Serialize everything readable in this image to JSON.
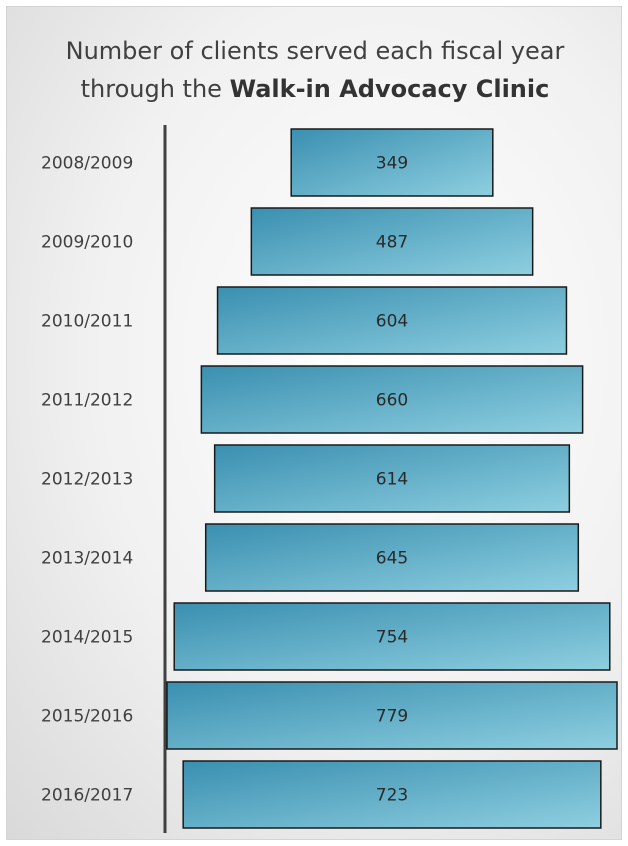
{
  "chart_data": {
    "type": "bar",
    "orientation": "horizontal-centered",
    "title_line1": "Number  of clients served each fiscal year",
    "title_line2_prefix": "through the ",
    "title_line2_bold": "Walk-in Advocacy Clinic",
    "categories": [
      "2008/2009",
      "2009/2010",
      "2010/2011",
      "2011/2012",
      "2012/2013",
      "2013/2014",
      "2014/2015",
      "2015/2016",
      "2016/2017"
    ],
    "values": [
      349,
      487,
      604,
      660,
      614,
      645,
      754,
      779,
      723
    ],
    "value_labels": [
      "349",
      "487",
      "604",
      "660",
      "614",
      "645",
      "754",
      "779",
      "723"
    ],
    "legend": "none",
    "grid": false,
    "colors": {
      "bar_dark": "#3a8fb0",
      "bar_light": "#8ecfe0",
      "bar_border": "#1a1a1a",
      "axis": "#404040"
    }
  }
}
